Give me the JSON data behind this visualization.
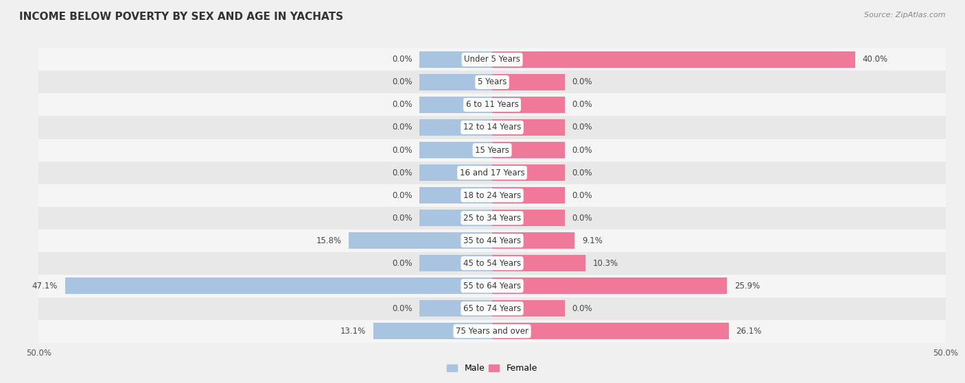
{
  "title": "INCOME BELOW POVERTY BY SEX AND AGE IN YACHATS",
  "source": "Source: ZipAtlas.com",
  "categories": [
    "Under 5 Years",
    "5 Years",
    "6 to 11 Years",
    "12 to 14 Years",
    "15 Years",
    "16 and 17 Years",
    "18 to 24 Years",
    "25 to 34 Years",
    "35 to 44 Years",
    "45 to 54 Years",
    "55 to 64 Years",
    "65 to 74 Years",
    "75 Years and over"
  ],
  "male_values": [
    0.0,
    0.0,
    0.0,
    0.0,
    0.0,
    0.0,
    0.0,
    0.0,
    15.8,
    0.0,
    47.1,
    0.0,
    13.1
  ],
  "female_values": [
    40.0,
    0.0,
    0.0,
    0.0,
    0.0,
    0.0,
    0.0,
    0.0,
    9.1,
    10.3,
    25.9,
    0.0,
    26.1
  ],
  "male_color": "#a8c4e0",
  "female_color": "#f0799a",
  "male_label": "Male",
  "female_label": "Female",
  "xlim": 50.0,
  "stub_size": 8.0,
  "background_color": "#f0f0f0",
  "row_bg_light": "#f5f5f5",
  "row_bg_dark": "#e8e8e8",
  "title_fontsize": 11,
  "label_fontsize": 8.5,
  "category_fontsize": 8.5,
  "axis_label_fontsize": 8.5
}
